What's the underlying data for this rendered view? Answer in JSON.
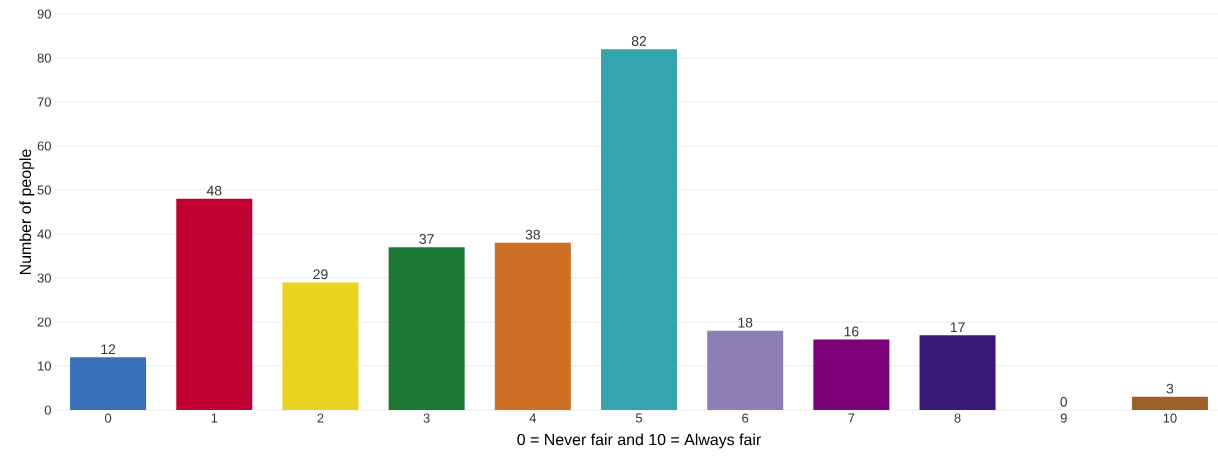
{
  "chart_data": {
    "type": "bar",
    "xlabel": "0 = Never fair and 10 = Always fair",
    "ylabel": "Number of people",
    "categories": [
      "0",
      "1",
      "2",
      "3",
      "4",
      "5",
      "6",
      "7",
      "8",
      "9",
      "10"
    ],
    "values": [
      12,
      48,
      29,
      37,
      38,
      82,
      18,
      16,
      17,
      0,
      3
    ],
    "colors": [
      "#3a70b8",
      "#c00030",
      "#ead21e",
      "#1c7834",
      "#cd6f25",
      "#35a4ae",
      "#8e80b4",
      "#7c0077",
      "#3a1878",
      "#888888",
      "#9c6128"
    ],
    "ylim": [
      0,
      90
    ],
    "yticks": [
      0,
      10,
      20,
      30,
      40,
      50,
      60,
      70,
      80,
      90
    ],
    "grid": "y",
    "data_labels": true
  }
}
